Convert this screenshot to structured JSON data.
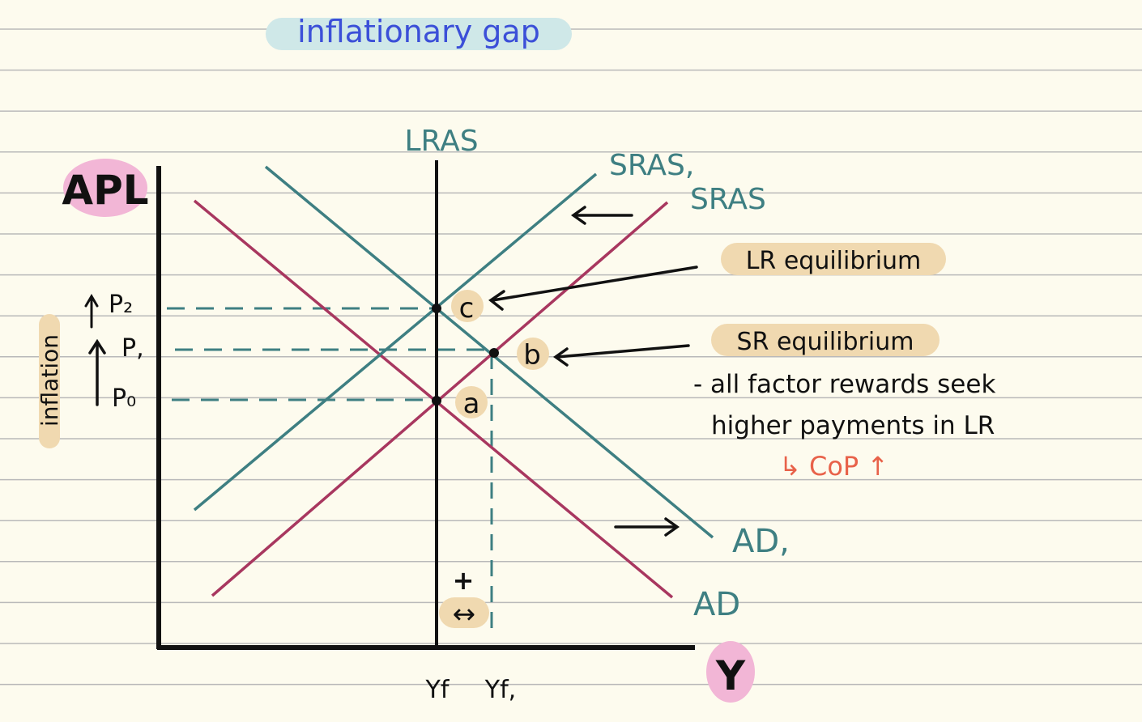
{
  "title": "inflationary gap",
  "y_axis_label": "APL",
  "x_axis_label": "Y",
  "side_label": "inflation",
  "curves": {
    "lras": "LRAS",
    "sras1": "SRAS,",
    "sras": "SRAS",
    "ad1": "AD,",
    "ad": "AD"
  },
  "price_levels": [
    "P₂",
    "P,",
    "P₀"
  ],
  "output_levels": [
    "Yf",
    "Yf,"
  ],
  "points": [
    "c",
    "b",
    "a"
  ],
  "annotations": {
    "lr_equilibrium": "LR equilibrium",
    "sr_equilibrium": "SR equilibrium",
    "note_line1": "- all  factor  rewards  seek",
    "note_line2": "higher  payments  in  LR",
    "cop": "↳ CoP  ↑",
    "plus": "+",
    "double_arrow": "↔"
  },
  "colors": {
    "background": "#fdfbee",
    "ruled_lines": "#b9b9b9",
    "teal": "#3e7f82",
    "magenta": "#a8375f",
    "title_blue": "#3b4fd8",
    "title_highlight": "#cfe8e8",
    "orange_highlight": "#f0d9b0",
    "pink_highlight": "#f2b6d6",
    "note_red": "#e8624a"
  }
}
